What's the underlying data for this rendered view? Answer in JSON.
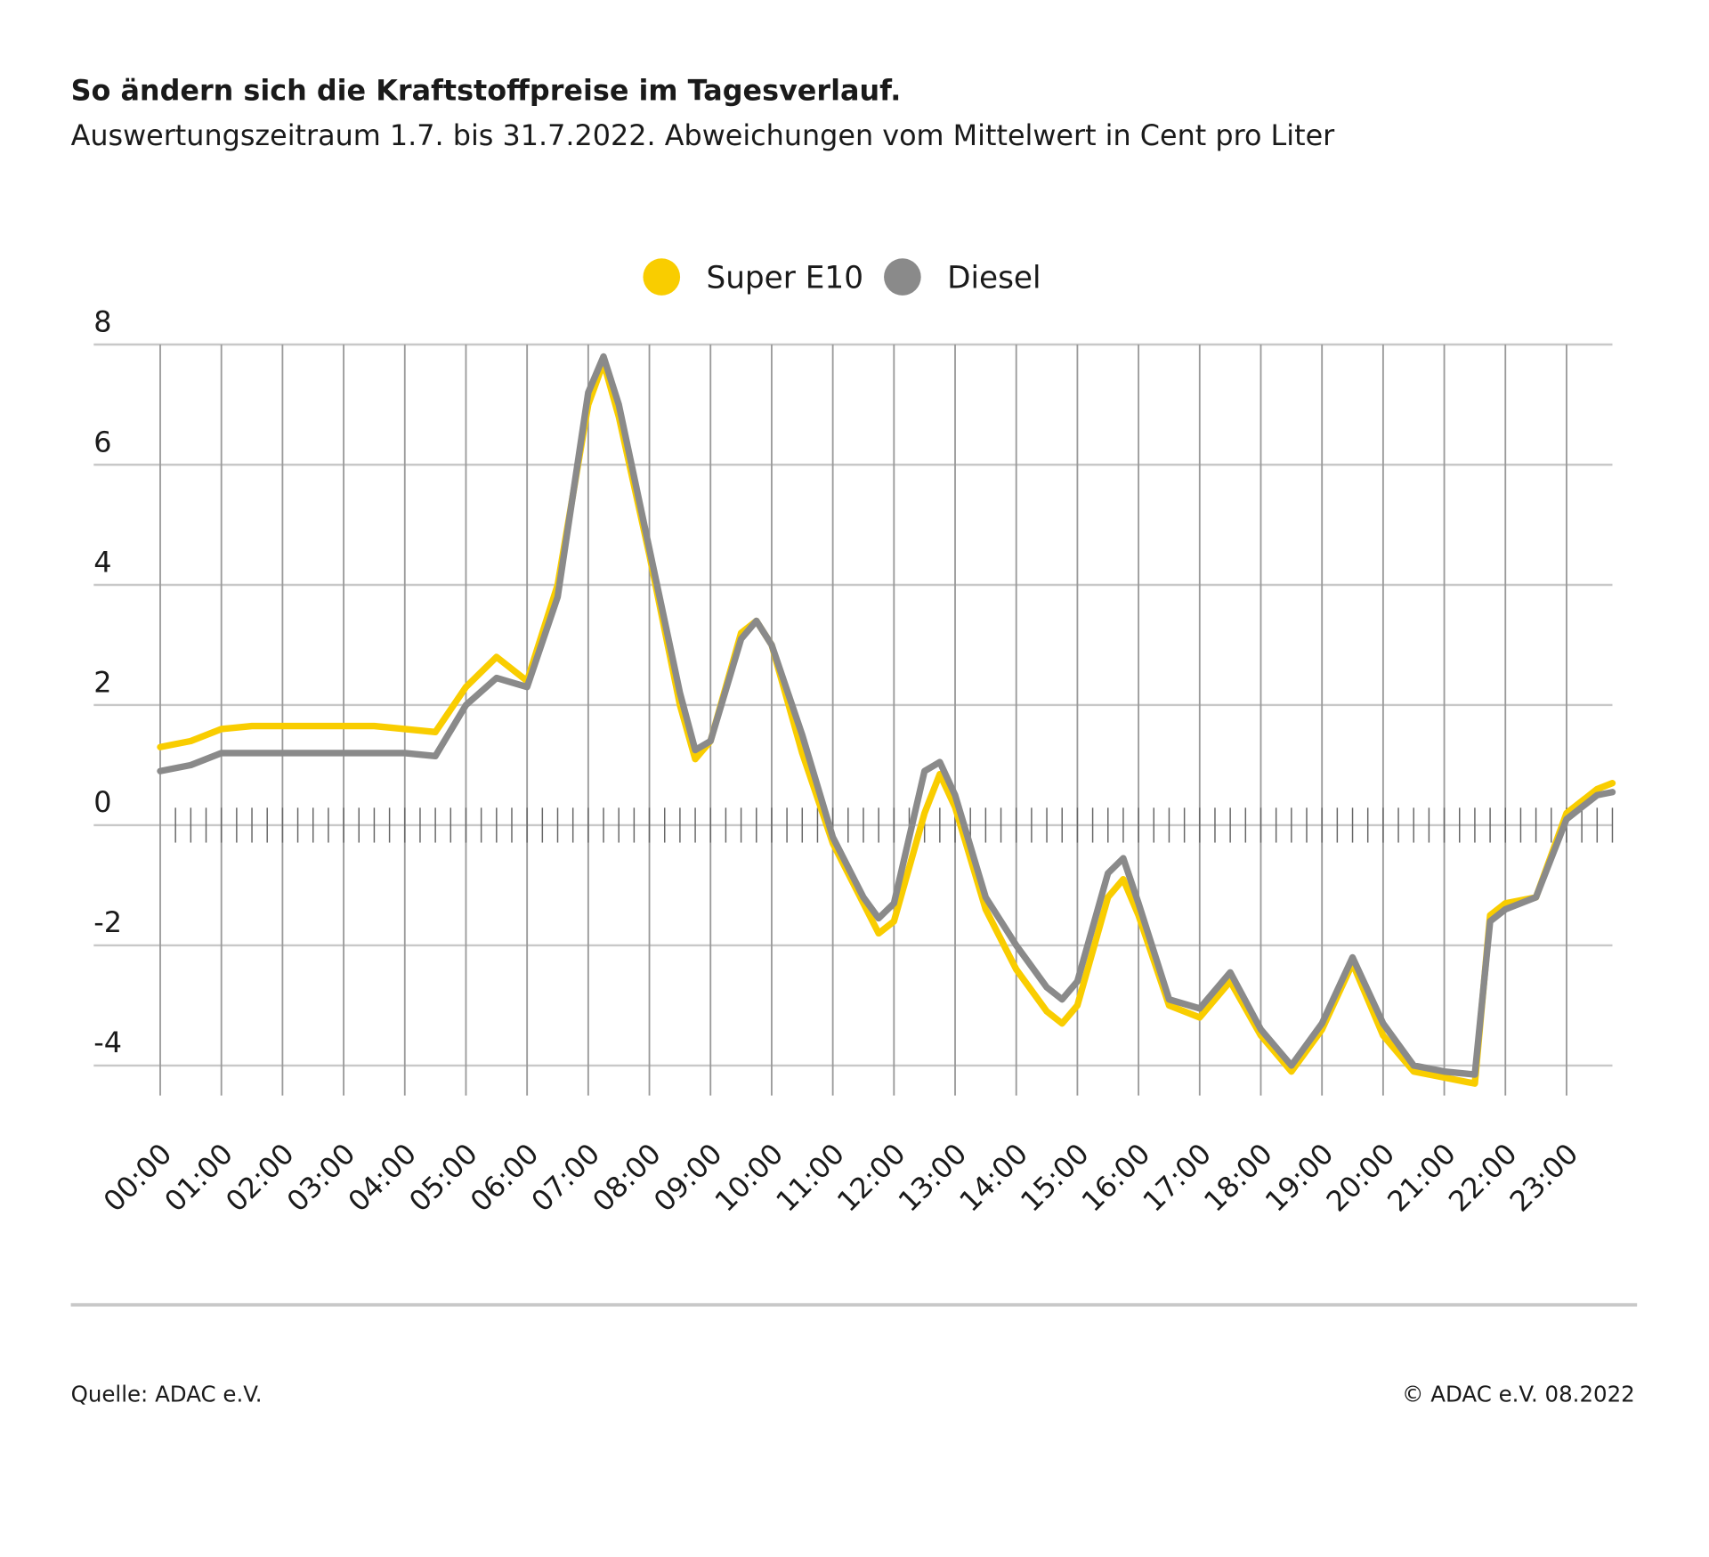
{
  "chart_data": {
    "type": "line",
    "title": "So ändern sich die Kraftstoffpreise im Tagesverlauf.",
    "subtitle": "Auswertungszeitraum 1.7. bis 31.7.2022. Abweichungen vom Mittelwert in Cent pro Liter",
    "source": "Quelle: ADAC e.V.",
    "copyright": "© ADAC e.V. 08.2022",
    "legend": "top",
    "grid": true,
    "x": [
      0,
      0.5,
      1,
      1.5,
      2,
      2.5,
      3,
      3.5,
      4,
      4.5,
      5,
      5.5,
      6,
      6.5,
      7,
      7.25,
      7.5,
      8,
      8.5,
      8.75,
      9,
      9.5,
      9.75,
      10,
      10.5,
      11,
      11.5,
      11.75,
      12,
      12.5,
      12.75,
      13,
      13.5,
      14,
      14.5,
      14.75,
      15,
      15.5,
      15.75,
      16,
      16.5,
      17,
      17.5,
      18,
      18.5,
      19,
      19.5,
      20,
      20.5,
      21,
      21.5,
      21.75,
      22,
      22.5,
      23,
      23.5,
      23.75
    ],
    "xlim": [
      0,
      23.75
    ],
    "xticks": [
      {
        "value": 0,
        "label": "00:00"
      },
      {
        "value": 1,
        "label": "01:00"
      },
      {
        "value": 2,
        "label": "02:00"
      },
      {
        "value": 3,
        "label": "03:00"
      },
      {
        "value": 4,
        "label": "04:00"
      },
      {
        "value": 5,
        "label": "05:00"
      },
      {
        "value": 6,
        "label": "06:00"
      },
      {
        "value": 7,
        "label": "07:00"
      },
      {
        "value": 8,
        "label": "08:00"
      },
      {
        "value": 9,
        "label": "09:00"
      },
      {
        "value": 10,
        "label": "10:00"
      },
      {
        "value": 11,
        "label": "11:00"
      },
      {
        "value": 12,
        "label": "12:00"
      },
      {
        "value": 13,
        "label": "13:00"
      },
      {
        "value": 14,
        "label": "14:00"
      },
      {
        "value": 15,
        "label": "15:00"
      },
      {
        "value": 16,
        "label": "16:00"
      },
      {
        "value": 17,
        "label": "17:00"
      },
      {
        "value": 18,
        "label": "18:00"
      },
      {
        "value": 19,
        "label": "19:00"
      },
      {
        "value": 20,
        "label": "20:00"
      },
      {
        "value": 21,
        "label": "21:00"
      },
      {
        "value": 22,
        "label": "22:00"
      },
      {
        "value": 23,
        "label": "23:00"
      }
    ],
    "ylim": [
      -4.5,
      8
    ],
    "yticks": [
      -4,
      -2,
      0,
      2,
      4,
      6,
      8
    ],
    "series": [
      {
        "name": "Super E10",
        "color": "#f9cd00",
        "values": [
          1.3,
          1.4,
          1.6,
          1.65,
          1.65,
          1.65,
          1.65,
          1.65,
          1.6,
          1.55,
          2.3,
          2.8,
          2.4,
          4.0,
          7.0,
          7.7,
          6.8,
          4.5,
          2.0,
          1.1,
          1.4,
          3.2,
          3.4,
          3.0,
          1.2,
          -0.3,
          -1.3,
          -1.8,
          -1.6,
          0.2,
          0.85,
          0.3,
          -1.4,
          -2.4,
          -3.1,
          -3.3,
          -3.0,
          -1.2,
          -0.9,
          -1.5,
          -3.0,
          -3.2,
          -2.6,
          -3.5,
          -4.1,
          -3.4,
          -2.3,
          -3.5,
          -4.1,
          -4.2,
          -4.3,
          -1.5,
          -1.3,
          -1.2,
          0.2,
          0.6,
          0.7
        ]
      },
      {
        "name": "Diesel",
        "color": "#8a8a8a",
        "values": [
          0.9,
          1.0,
          1.2,
          1.2,
          1.2,
          1.2,
          1.2,
          1.2,
          1.2,
          1.15,
          2.0,
          2.45,
          2.3,
          3.8,
          7.2,
          7.8,
          7.0,
          4.6,
          2.2,
          1.25,
          1.4,
          3.1,
          3.4,
          3.0,
          1.5,
          -0.2,
          -1.2,
          -1.55,
          -1.3,
          0.9,
          1.05,
          0.5,
          -1.2,
          -2.0,
          -2.7,
          -2.9,
          -2.6,
          -0.8,
          -0.55,
          -1.3,
          -2.9,
          -3.05,
          -2.45,
          -3.4,
          -4.0,
          -3.3,
          -2.2,
          -3.3,
          -4.0,
          -4.1,
          -4.15,
          -1.6,
          -1.4,
          -1.2,
          0.1,
          0.5,
          0.55
        ]
      }
    ]
  }
}
